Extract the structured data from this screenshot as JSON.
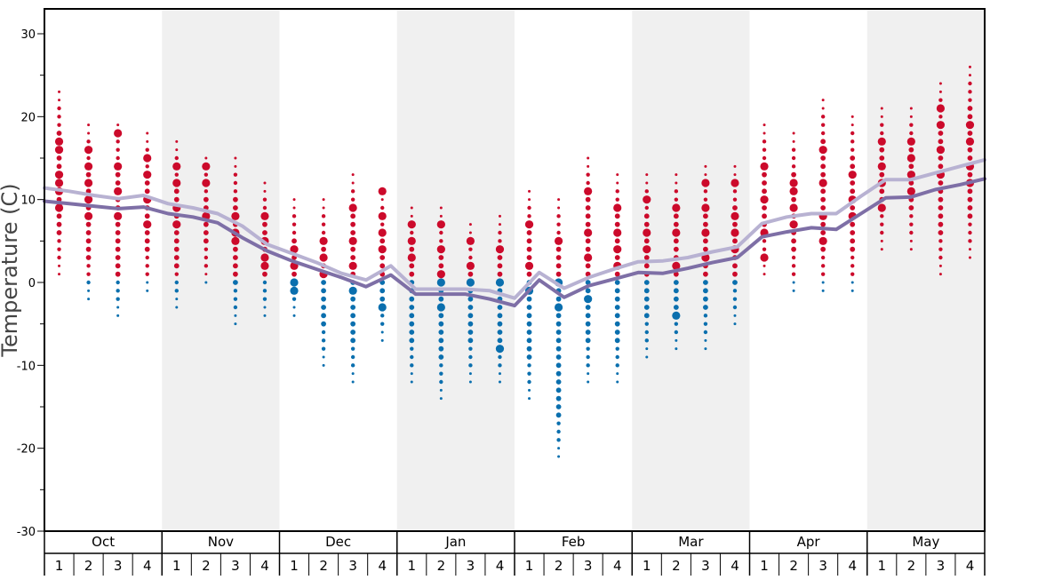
{
  "chart_data": {
    "type": "scatter",
    "ylabel": "Temperature (C)",
    "ylim": [
      -30,
      33
    ],
    "yticks": [
      -30,
      -20,
      -10,
      0,
      10,
      20,
      30
    ],
    "months": [
      "Oct",
      "Nov",
      "Dec",
      "Jan",
      "Feb",
      "Mar",
      "Apr",
      "May"
    ],
    "weeks": [
      "1",
      "2",
      "3",
      "4"
    ],
    "shaded_months": [
      "Nov",
      "Jan",
      "Mar",
      "May"
    ],
    "colors": {
      "above_zero": "#cc0a2b",
      "below_zero": "#0a6fae",
      "line_dark": "#7e6fa6",
      "line_light": "#b8b2d2",
      "band": "#f0f0f0"
    },
    "series": [
      {
        "values": [
          9.8,
          9.5,
          9.2,
          8.9,
          9.1,
          8.3,
          7.9,
          7.2,
          5.4,
          3.8,
          2.6,
          1.6,
          0.6,
          -0.5,
          0.9,
          -1.4,
          -1.4,
          -1.4,
          -2.0,
          -2.8,
          0.3,
          -1.8,
          -0.4,
          0.4,
          1.2,
          1.1,
          1.7,
          2.4,
          3.0,
          5.5,
          6.1,
          6.6,
          6.4,
          8.3,
          10.2,
          10.3,
          11.2,
          11.8,
          12.5
        ]
      },
      {
        "values": [
          11.4,
          11.0,
          10.5,
          10.1,
          10.5,
          9.5,
          9.0,
          8.3,
          6.8,
          4.6,
          3.5,
          2.4,
          1.1,
          0.3,
          2.0,
          -0.8,
          -0.8,
          -0.8,
          -1.0,
          -1.9,
          1.2,
          -0.7,
          0.6,
          1.6,
          2.5,
          2.6,
          3.0,
          3.7,
          4.3,
          7.1,
          7.9,
          8.3,
          8.3,
          10.4,
          12.4,
          12.4,
          13.2,
          14.0,
          14.8
        ]
      }
    ],
    "scatter_columns": [
      {
        "low": 1,
        "high": 23,
        "big": [
          17,
          16,
          13,
          12,
          11,
          9
        ]
      },
      {
        "low": -2,
        "high": 19,
        "big": [
          16,
          14,
          12,
          10,
          8
        ]
      },
      {
        "low": -4,
        "high": 19,
        "big": [
          18,
          14,
          11,
          8
        ]
      },
      {
        "low": -1,
        "high": 18,
        "big": [
          15,
          13,
          10,
          7
        ]
      },
      {
        "low": -3,
        "high": 17,
        "big": [
          14,
          12,
          9,
          7
        ]
      },
      {
        "low": 0,
        "high": 15,
        "big": [
          14,
          12,
          8
        ]
      },
      {
        "low": -5,
        "high": 15,
        "big": [
          8,
          6,
          5
        ]
      },
      {
        "low": -4,
        "high": 12,
        "big": [
          8,
          5,
          3,
          2
        ]
      },
      {
        "low": -4,
        "high": 10,
        "big": [
          4,
          2,
          0,
          -1
        ]
      },
      {
        "low": -10,
        "high": 10,
        "big": [
          5,
          3,
          1
        ]
      },
      {
        "low": -12,
        "high": 13,
        "big": [
          9,
          5,
          2,
          -1
        ]
      },
      {
        "low": -7,
        "high": 11,
        "big": [
          11,
          8,
          6,
          4,
          -3
        ]
      },
      {
        "low": -12,
        "high": 9,
        "big": [
          7,
          5,
          3
        ]
      },
      {
        "low": -14,
        "high": 9,
        "big": [
          7,
          4,
          1,
          0,
          -3
        ]
      },
      {
        "low": -12,
        "high": 7,
        "big": [
          5,
          2,
          0
        ]
      },
      {
        "low": -12,
        "high": 8,
        "big": [
          4,
          0,
          -8
        ]
      },
      {
        "low": -14,
        "high": 11,
        "big": [
          7,
          2,
          -1
        ]
      },
      {
        "low": -21,
        "high": 10,
        "big": [
          5,
          0,
          -3
        ]
      },
      {
        "low": -12,
        "high": 15,
        "big": [
          11,
          6,
          3,
          -2
        ]
      },
      {
        "low": -12,
        "high": 13,
        "big": [
          9,
          6,
          4,
          2
        ]
      },
      {
        "low": -9,
        "high": 13,
        "big": [
          10,
          6,
          4
        ]
      },
      {
        "low": -8,
        "high": 13,
        "big": [
          9,
          6,
          2,
          -4
        ]
      },
      {
        "low": -8,
        "high": 14,
        "big": [
          12,
          9,
          6,
          3
        ]
      },
      {
        "low": -5,
        "high": 14,
        "big": [
          12,
          8,
          6,
          4
        ]
      },
      {
        "low": 1,
        "high": 19,
        "big": [
          14,
          10,
          6,
          3
        ]
      },
      {
        "low": -1,
        "high": 18,
        "big": [
          12,
          11,
          9,
          7
        ]
      },
      {
        "low": -1,
        "high": 22,
        "big": [
          16,
          12,
          8,
          5
        ]
      },
      {
        "low": -1,
        "high": 20,
        "big": [
          13,
          10,
          8
        ]
      },
      {
        "low": 4,
        "high": 21,
        "big": [
          17,
          14,
          12,
          9
        ]
      },
      {
        "low": 4,
        "high": 21,
        "big": [
          17,
          15,
          13,
          11
        ]
      },
      {
        "low": 1,
        "high": 24,
        "big": [
          21,
          19,
          16,
          13
        ]
      },
      {
        "low": 3,
        "high": 26,
        "big": [
          19,
          17,
          14,
          12
        ]
      }
    ]
  }
}
